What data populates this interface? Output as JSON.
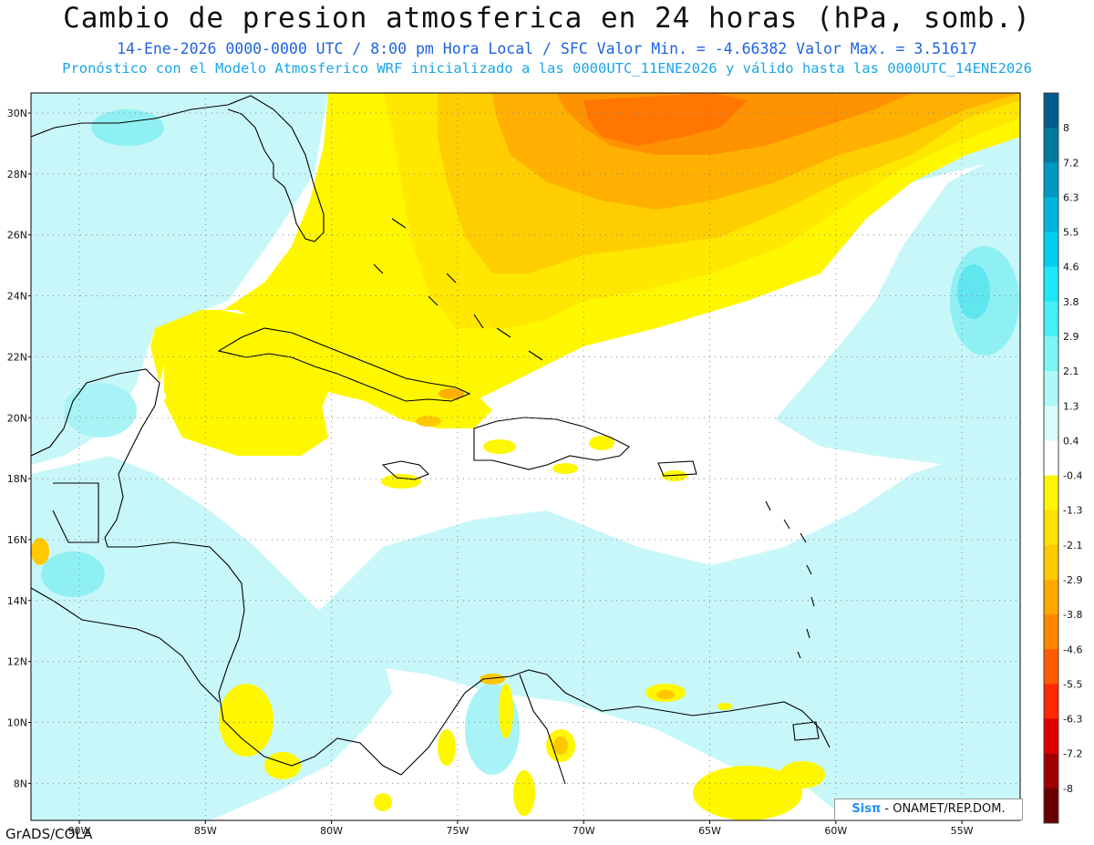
{
  "header": {
    "title": "Cambio de presion atmosferica en 24 horas (hPa, somb.)",
    "line1": "14-Ene-2026   0000-0000 UTC / 8:00 pm Hora Local / SFC    Valor Min. = -4.66382  Valor Max. = 3.51617",
    "line2": "Pronóstico con el Modelo Atmosferico WRF inicializado a las 0000UTC_11ENE2026 y válido hasta las  0000UTC_14ENE2026"
  },
  "map": {
    "lat_labels": [
      "30N",
      "28N",
      "26N",
      "24N",
      "22N",
      "20N",
      "18N",
      "16N",
      "14N",
      "12N",
      "10N",
      "8N"
    ],
    "lon_labels": [
      "90W",
      "85W",
      "80W",
      "75W",
      "70W",
      "65W",
      "60W",
      "55W"
    ]
  },
  "colorbar": {
    "labels": [
      "8",
      "7.2",
      "6.3",
      "5.5",
      "4.6",
      "3.8",
      "2.9",
      "2.1",
      "1.3",
      "0.4",
      "-0.4",
      "-1.3",
      "-2.1",
      "-2.9",
      "-3.8",
      "-4.6",
      "-5.5",
      "-6.3",
      "-7.2",
      "-8"
    ],
    "colors": [
      "#005a8c",
      "#00779f",
      "#0097c2",
      "#00b5dc",
      "#00d0ee",
      "#1ee8f8",
      "#46f0f5",
      "#7ff4f6",
      "#b0f7f8",
      "#dafbfb",
      "#ffffff",
      "#fff500",
      "#ffe100",
      "#ffc800",
      "#ffa800",
      "#ff8700",
      "#ff5a00",
      "#ff2800",
      "#e00000",
      "#a00000",
      "#6a0000"
    ]
  },
  "footer": {
    "software": "GrADS/COLA",
    "credit_brand": "Sisπ",
    "credit_text": " - ONAMET/REP.DOM."
  }
}
